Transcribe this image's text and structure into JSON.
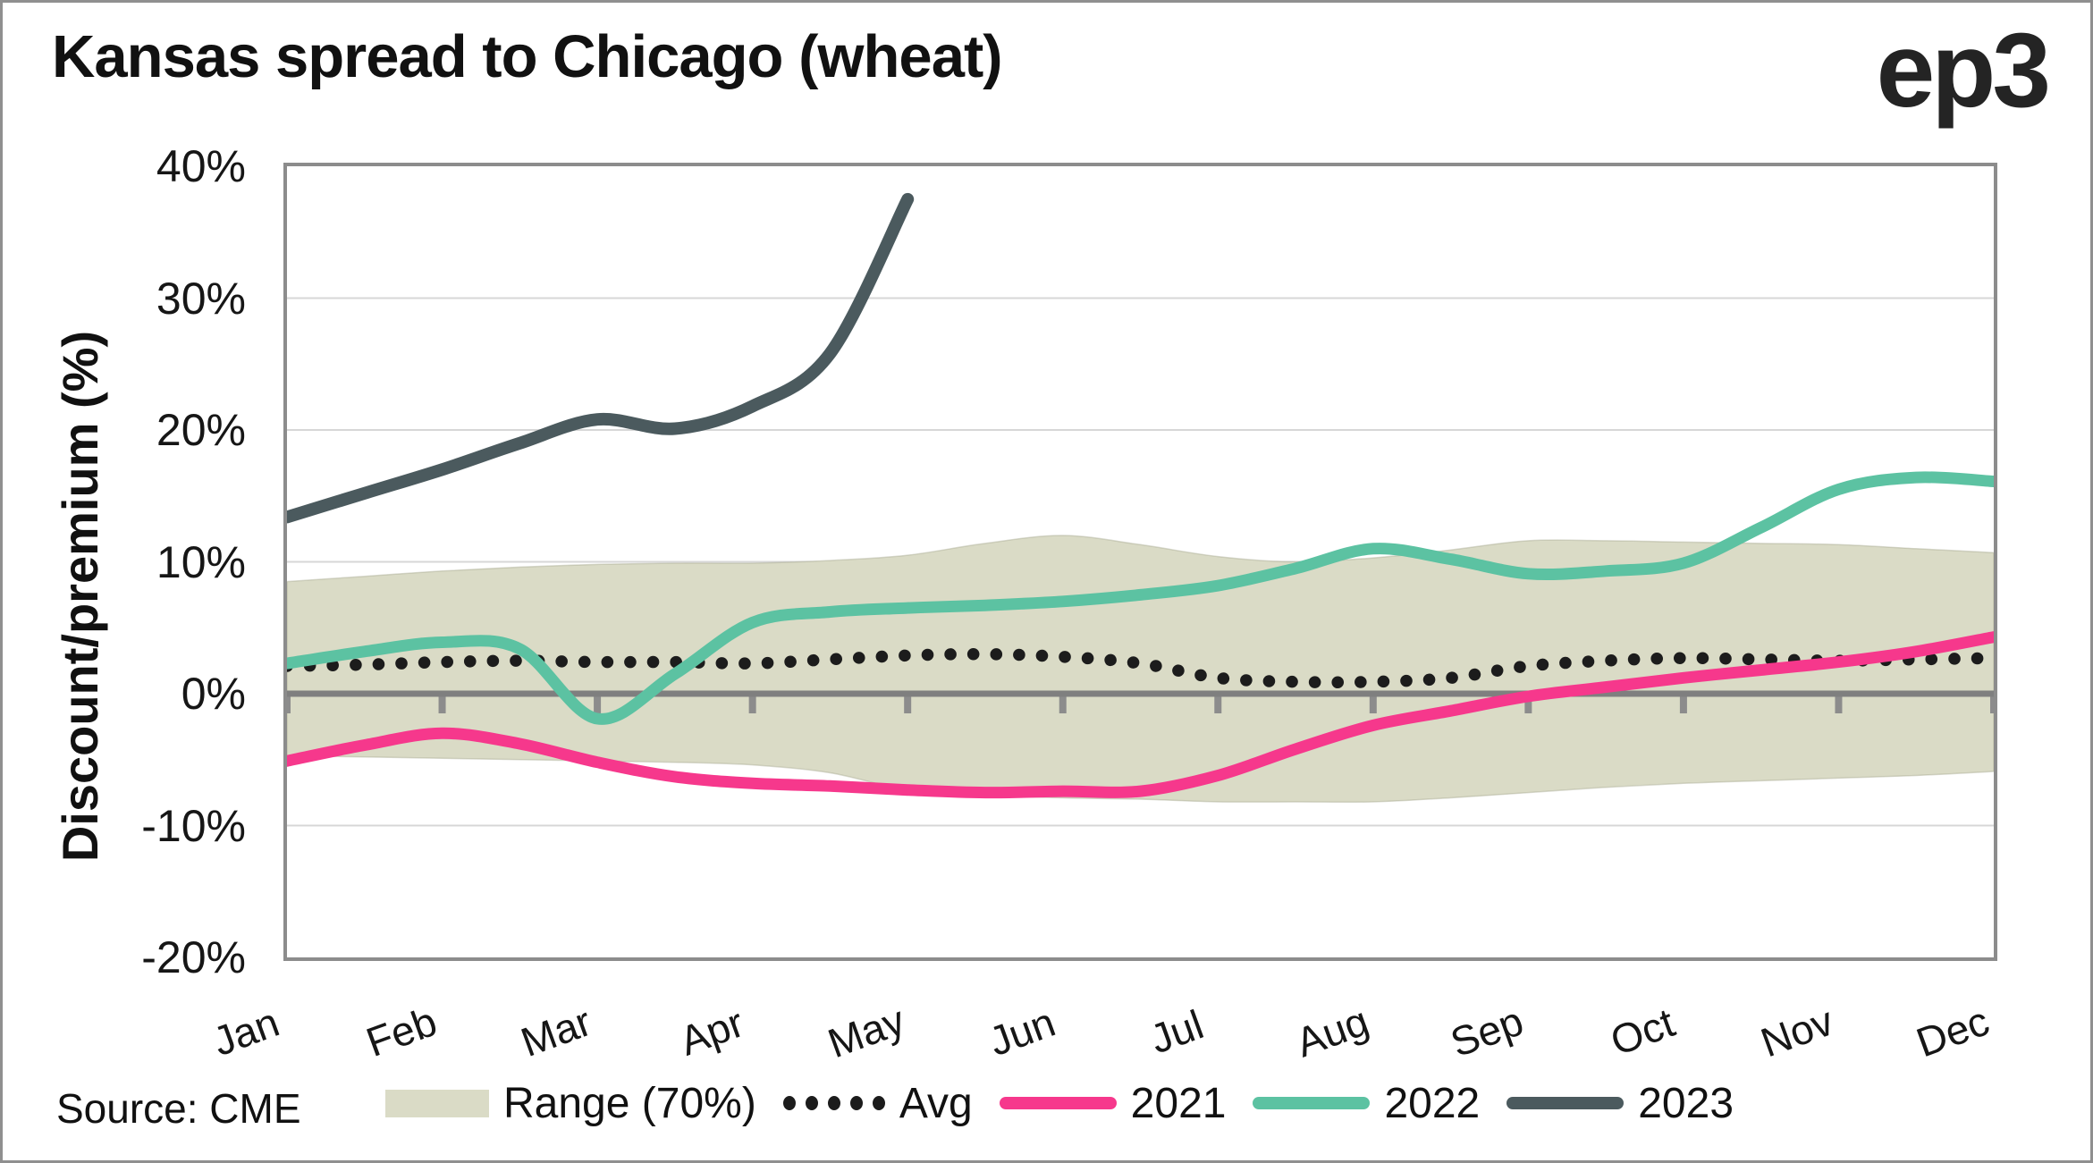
{
  "header": {
    "title": "Kansas spread to Chicago (wheat)",
    "logo": "ep3"
  },
  "footer": {
    "source": "Source: CME"
  },
  "chart_data": {
    "type": "line",
    "title": "Kansas spread to Chicago (wheat)",
    "xlabel": "",
    "ylabel": "Discount/premium (%)",
    "ylim": [
      -20,
      40
    ],
    "ytick_values": [
      40,
      30,
      20,
      10,
      0,
      -10,
      -20
    ],
    "ytick_labels": [
      "40%",
      "30%",
      "20%",
      "10%",
      "0%",
      "-10%",
      "-20%"
    ],
    "months": [
      "Jan",
      "Feb",
      "Mar",
      "Apr",
      "May",
      "Jun",
      "Jul",
      "Aug",
      "Sep",
      "Oct",
      "Nov",
      "Dec"
    ],
    "sample_step_months": 0.5,
    "grid": "horizontal",
    "legend_position": "bottom",
    "colors": {
      "axis": "#8c8c8c",
      "zero_line": "#7f7f7f",
      "gridline": "#d7d7d7",
      "text": "#141414"
    },
    "series": [
      {
        "name": "Range (70%)",
        "kind": "band",
        "color": "#dadbc6",
        "edge_color": "#a8aa92",
        "top": [
          8.5,
          8.9,
          9.3,
          9.6,
          9.8,
          9.9,
          9.9,
          10.1,
          10.5,
          11.4,
          12.0,
          11.3,
          10.4,
          10.0,
          10.3,
          10.9,
          11.6,
          11.6,
          11.5,
          11.4,
          11.3,
          11.0,
          10.7
        ],
        "bottom": [
          -4.7,
          -4.8,
          -4.9,
          -5.0,
          -5.1,
          -5.2,
          -5.4,
          -6.0,
          -7.3,
          -7.7,
          -7.9,
          -8.0,
          -8.2,
          -8.2,
          -8.2,
          -7.9,
          -7.5,
          -7.1,
          -6.8,
          -6.6,
          -6.4,
          -6.2,
          -5.9
        ]
      },
      {
        "name": "Avg",
        "kind": "dotted",
        "color": "#1c1c1c",
        "values": [
          2.1,
          2.2,
          2.4,
          2.5,
          2.4,
          2.4,
          2.3,
          2.6,
          2.9,
          3.0,
          2.8,
          2.3,
          1.2,
          0.9,
          0.9,
          1.2,
          2.1,
          2.5,
          2.7,
          2.6,
          2.5,
          2.6,
          2.7
        ]
      },
      {
        "name": "2021",
        "kind": "line",
        "color": "#f6388c",
        "values": [
          -5.1,
          -3.9,
          -3.0,
          -3.8,
          -5.2,
          -6.3,
          -6.8,
          -7.0,
          -7.3,
          -7.5,
          -7.4,
          -7.4,
          -6.2,
          -4.2,
          -2.4,
          -1.3,
          -0.2,
          0.5,
          1.2,
          1.8,
          2.4,
          3.2,
          4.3
        ]
      },
      {
        "name": "2022",
        "kind": "line",
        "color": "#5cc2a2",
        "values": [
          2.3,
          3.2,
          3.9,
          3.4,
          -1.9,
          1.5,
          5.4,
          6.2,
          6.5,
          6.7,
          7.0,
          7.5,
          8.2,
          9.5,
          11.0,
          10.2,
          9.1,
          9.3,
          9.9,
          12.6,
          15.5,
          16.4,
          16.1
        ]
      },
      {
        "name": "2023",
        "kind": "line",
        "color": "#4b5a5e",
        "values": [
          13.4,
          15.2,
          17.0,
          19.0,
          20.8,
          20.1,
          21.8,
          25.8,
          37.5
        ]
      }
    ]
  }
}
